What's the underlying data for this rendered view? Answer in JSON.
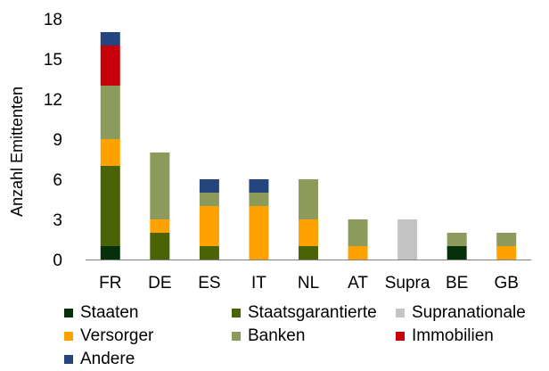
{
  "chart_data": {
    "type": "bar",
    "stacked": true,
    "title": "",
    "xlabel": "",
    "ylabel": "Anzahl Emittenten",
    "ylim": [
      0,
      18
    ],
    "yticks": [
      0,
      3,
      6,
      9,
      12,
      15,
      18
    ],
    "grid": false,
    "legend_position": "bottom",
    "categories": [
      "FR",
      "DE",
      "ES",
      "IT",
      "NL",
      "AT",
      "Supra",
      "BE",
      "GB"
    ],
    "series": [
      {
        "name": "Staaten",
        "color": "#06300a",
        "values": [
          1,
          0,
          0,
          0,
          0,
          0,
          0,
          1,
          0
        ]
      },
      {
        "name": "Staatsgarantierte",
        "color": "#4a6405",
        "values": [
          6,
          2,
          1,
          0,
          1,
          0,
          0,
          0,
          0
        ]
      },
      {
        "name": "Supranationale",
        "color": "#c4c4c4",
        "values": [
          0,
          0,
          0,
          0,
          0,
          0,
          3,
          0,
          0
        ]
      },
      {
        "name": "Versorger",
        "color": "#ffa200",
        "values": [
          2,
          1,
          3,
          4,
          2,
          1,
          0,
          0,
          1
        ]
      },
      {
        "name": "Banken",
        "color": "#8c9a5c",
        "values": [
          4,
          5,
          1,
          1,
          3,
          2,
          0,
          1,
          1
        ]
      },
      {
        "name": "Immobilien",
        "color": "#c8000a",
        "values": [
          3,
          0,
          0,
          0,
          0,
          0,
          0,
          0,
          0
        ]
      },
      {
        "name": "Andere",
        "color": "#24457e",
        "values": [
          1,
          0,
          1,
          1,
          0,
          0,
          0,
          0,
          0
        ]
      }
    ]
  }
}
